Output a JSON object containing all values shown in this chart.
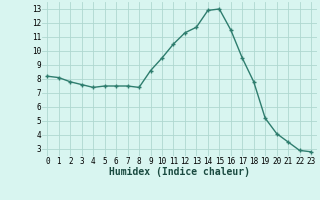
{
  "x": [
    0,
    1,
    2,
    3,
    4,
    5,
    6,
    7,
    8,
    9,
    10,
    11,
    12,
    13,
    14,
    15,
    16,
    17,
    18,
    19,
    20,
    21,
    22,
    23
  ],
  "y": [
    8.2,
    8.1,
    7.8,
    7.6,
    7.4,
    7.5,
    7.5,
    7.5,
    7.4,
    8.6,
    9.5,
    10.5,
    11.3,
    11.7,
    12.9,
    13.0,
    11.5,
    9.5,
    7.8,
    5.2,
    4.1,
    3.5,
    2.9,
    2.8
  ],
  "line_color": "#2e7d6e",
  "marker": "+",
  "marker_size": 3,
  "bg_color": "#d8f5f0",
  "grid_color": "#afd8d0",
  "xlabel": "Humidex (Indice chaleur)",
  "xlabel_fontsize": 7,
  "xlim": [
    -0.5,
    23.5
  ],
  "ylim": [
    2.5,
    13.5
  ],
  "yticks": [
    3,
    4,
    5,
    6,
    7,
    8,
    9,
    10,
    11,
    12,
    13
  ],
  "xticks": [
    0,
    1,
    2,
    3,
    4,
    5,
    6,
    7,
    8,
    9,
    10,
    11,
    12,
    13,
    14,
    15,
    16,
    17,
    18,
    19,
    20,
    21,
    22,
    23
  ],
  "tick_fontsize": 5.5,
  "line_width": 1.0,
  "marker_edge_width": 1.0
}
